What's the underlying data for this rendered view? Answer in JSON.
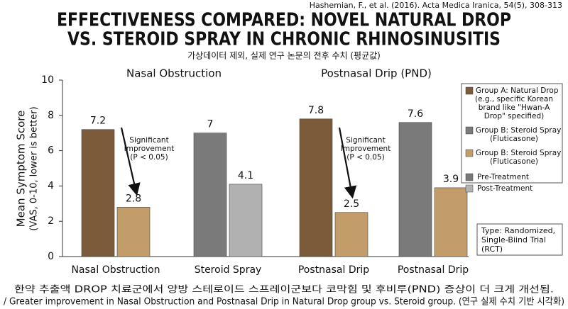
{
  "chart_data": {
    "type": "bar",
    "citation": "Hashemian, F., et al. (2016). Acta Medica Iranica, 54(5), 308-313",
    "title": [
      "EFFECTIVENESS COMPARED: NOVEL NATURAL DROP",
      "VS. STEROID SPRAY IN CHRONIC RHINOSINUSITIS"
    ],
    "subtitle": "가상데이터 제외, 실제 연구 논문의 전후 수치 (평균값)",
    "group_headers": [
      "Nasal Obstruction",
      "Postnasal Drip (PND)"
    ],
    "y_label": [
      "Mean Symptom Score",
      "(VAS, 0-10, lower is better)"
    ],
    "categories": [
      "Nasal Obstruction",
      "Steroid Spray",
      "Postnasal Drip",
      "Postnasal Drip"
    ],
    "series": [
      {
        "name": "Pre-Treatment",
        "color": "#777777",
        "colors": [
          "#7b5b3a",
          "#7a7a7a",
          "#7b5b3a",
          "#7a7a7a"
        ],
        "values": [
          7.2,
          7.0,
          7.8,
          7.6
        ]
      },
      {
        "name": "Post-Treatment",
        "color": "#b4b4b4",
        "colors": [
          "#c29d6a",
          "#b1b1b1",
          "#c29d6a",
          "#c29d6a"
        ],
        "values": [
          2.8,
          4.1,
          2.5,
          3.9
        ]
      }
    ],
    "legend_groups": [
      {
        "color": "#7b5b3a",
        "lines": [
          "Group A: Natural Drop",
          "(e.g., specific Korean",
          "brand like \"Hwan-A",
          "Drop\" specified)"
        ]
      },
      {
        "color": "#7a7a7a",
        "lines": [
          "Group B: Steroid Spray",
          "(Fluticasone)"
        ]
      },
      {
        "color": "#c29d6a",
        "lines": [
          "Group B: Steroid Spray",
          "(Fluticasone)"
        ]
      }
    ],
    "annotations": [
      [
        "Significant",
        "Improvement",
        "(P < 0.05)"
      ],
      [
        "Significant",
        "Improvement",
        "(P < 0.05)"
      ]
    ],
    "study_type": [
      "Type: Randomized,",
      "Single-Biind Trial",
      "(RCT)"
    ],
    "footer": [
      "한약 추출액 DROP 치료군에서 양방 스테로이드 스프레이군보다 코막힘 및 후비루(PND) 증상이 더 크게 개선됨.",
      "/ Greater improvement in Nasal Obstruction and Postnasal Drip in Natural Drop group vs. Steroid group. (연구 실제 수치 기반 시각화)"
    ],
    "ylim": [
      0,
      10
    ],
    "yticks": [
      0,
      2,
      4,
      6,
      8,
      10
    ],
    "grid": false
  }
}
